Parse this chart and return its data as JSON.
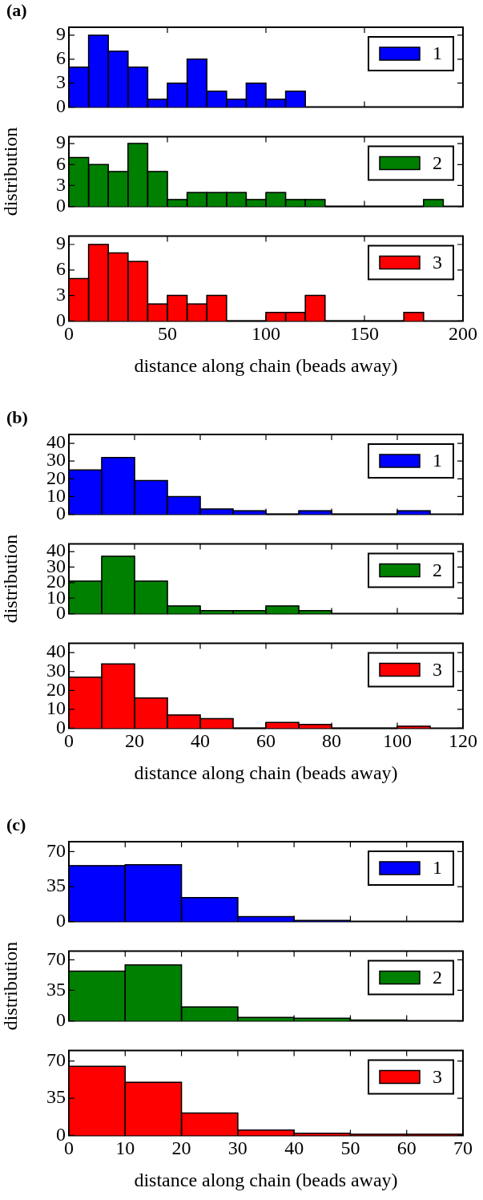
{
  "chart_data": [
    {
      "type": "histogram",
      "title": "(a)",
      "bins": [
        0,
        10,
        20,
        30,
        40,
        50,
        60,
        70,
        80,
        90,
        100,
        110,
        120
      ],
      "series": [
        {
          "name": "1",
          "color": "#0000ff",
          "values": [
            5,
            9,
            7,
            5,
            1,
            3,
            6,
            2,
            1,
            3,
            1,
            2
          ]
        }
      ],
      "xlim": [
        0,
        200
      ],
      "xticks": [
        0,
        50,
        100,
        150,
        200
      ],
      "ylim": [
        0,
        10
      ],
      "yticks": [
        0,
        3,
        6,
        9
      ],
      "tick_labels": "y",
      "legend": "top right"
    },
    {
      "type": "histogram",
      "ylabel": "distribution",
      "bins": [
        0,
        10,
        20,
        30,
        40,
        50,
        60,
        70,
        80,
        90,
        100,
        110,
        120,
        130,
        140,
        150,
        160,
        170,
        180,
        190
      ],
      "series": [
        {
          "name": "2",
          "color": "#008000",
          "values": [
            7,
            6,
            5,
            9,
            5,
            1,
            2,
            2,
            2,
            1,
            2,
            1,
            1,
            0,
            0,
            0,
            0,
            0,
            1
          ]
        }
      ],
      "xlim": [
        0,
        200
      ],
      "xticks": [
        0,
        50,
        100,
        150,
        200
      ],
      "ylim": [
        0,
        10
      ],
      "yticks": [
        0,
        3,
        6,
        9
      ],
      "tick_labels": "y",
      "legend": "top right"
    },
    {
      "type": "histogram",
      "xlabel": "distance along chain (beads away)",
      "bins": [
        0,
        10,
        20,
        30,
        40,
        50,
        60,
        70,
        80,
        90,
        100,
        110,
        120,
        130,
        140,
        150,
        160,
        170,
        180
      ],
      "series": [
        {
          "name": "3",
          "color": "#ff0000",
          "values": [
            5,
            9,
            8,
            7,
            2,
            3,
            2,
            3,
            0,
            0,
            1,
            1,
            3,
            0,
            0,
            0,
            0,
            1
          ]
        }
      ],
      "xlim": [
        0,
        200
      ],
      "xticks": [
        0,
        50,
        100,
        150,
        200
      ],
      "ylim": [
        0,
        10
      ],
      "yticks": [
        0,
        3,
        6,
        9
      ],
      "legend": "top right"
    },
    {
      "type": "histogram",
      "title": "(b)",
      "bins": [
        0,
        10,
        20,
        30,
        40,
        50,
        60,
        70,
        80,
        90,
        100,
        110
      ],
      "series": [
        {
          "name": "1",
          "color": "#0000ff",
          "values": [
            25,
            32,
            19,
            10,
            3,
            2,
            0,
            2,
            0,
            0,
            2
          ]
        }
      ],
      "xlim": [
        0,
        120
      ],
      "xticks": [
        0,
        20,
        40,
        60,
        80,
        100,
        120
      ],
      "ylim": [
        0,
        45
      ],
      "yticks": [
        0,
        10,
        20,
        30,
        40
      ],
      "tick_labels": "y",
      "legend": "top right"
    },
    {
      "type": "histogram",
      "ylabel": "distribution",
      "bins": [
        0,
        10,
        20,
        30,
        40,
        50,
        60,
        70,
        80
      ],
      "series": [
        {
          "name": "2",
          "color": "#008000",
          "values": [
            21,
            37,
            21,
            5,
            2,
            2,
            5,
            2
          ]
        }
      ],
      "xlim": [
        0,
        120
      ],
      "xticks": [
        0,
        20,
        40,
        60,
        80,
        100,
        120
      ],
      "ylim": [
        0,
        45
      ],
      "yticks": [
        0,
        10,
        20,
        30,
        40
      ],
      "tick_labels": "y",
      "legend": "top right"
    },
    {
      "type": "histogram",
      "xlabel": "distance along chain (beads away)",
      "bins": [
        0,
        10,
        20,
        30,
        40,
        50,
        60,
        70,
        80,
        90,
        100,
        110
      ],
      "series": [
        {
          "name": "3",
          "color": "#ff0000",
          "values": [
            27,
            34,
            16,
            7,
            5,
            0,
            3,
            2,
            0,
            0,
            1
          ]
        }
      ],
      "xlim": [
        0,
        120
      ],
      "xticks": [
        0,
        20,
        40,
        60,
        80,
        100,
        120
      ],
      "ylim": [
        0,
        45
      ],
      "yticks": [
        0,
        10,
        20,
        30,
        40
      ],
      "legend": "top right"
    },
    {
      "type": "histogram",
      "title": "(c)",
      "bins": [
        0,
        10,
        20,
        30,
        40,
        50
      ],
      "series": [
        {
          "name": "1",
          "color": "#0000ff",
          "values": [
            56,
            57,
            24,
            5,
            1
          ]
        }
      ],
      "xlim": [
        0,
        70
      ],
      "xticks": [
        0,
        10,
        20,
        30,
        40,
        50,
        60,
        70
      ],
      "ylim": [
        0,
        80
      ],
      "yticks": [
        0,
        35,
        70
      ],
      "tick_labels": "y",
      "legend": "top right"
    },
    {
      "type": "histogram",
      "ylabel": "distribution",
      "bins": [
        0,
        10,
        20,
        30,
        40,
        50,
        60
      ],
      "series": [
        {
          "name": "2",
          "color": "#008000",
          "values": [
            57,
            64,
            16,
            4,
            3,
            1
          ]
        }
      ],
      "xlim": [
        0,
        70
      ],
      "xticks": [
        0,
        10,
        20,
        30,
        40,
        50,
        60,
        70
      ],
      "ylim": [
        0,
        80
      ],
      "yticks": [
        0,
        35,
        70
      ],
      "tick_labels": "y",
      "legend": "top right"
    },
    {
      "type": "histogram",
      "xlabel": "distance along chain (beads away)",
      "bins": [
        0,
        10,
        20,
        30,
        40,
        50,
        60,
        70
      ],
      "series": [
        {
          "name": "3",
          "color": "#ff0000",
          "values": [
            65,
            50,
            21,
            5,
            2,
            1,
            1
          ]
        }
      ],
      "xlim": [
        0,
        70
      ],
      "xticks": [
        0,
        10,
        20,
        30,
        40,
        50,
        60,
        70
      ],
      "ylim": [
        0,
        80
      ],
      "yticks": [
        0,
        35,
        70
      ],
      "legend": "top right"
    }
  ]
}
